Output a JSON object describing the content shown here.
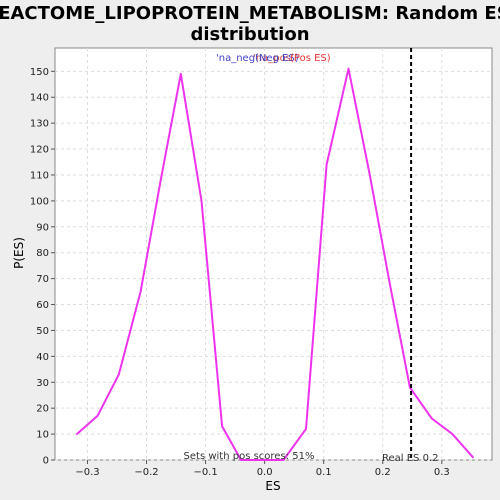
{
  "chart_data": {
    "type": "line",
    "title_line1": "REACTOME_LIPOPROTEIN_METABOLISM: Random ES",
    "title_line2": "distribution",
    "xlabel": "ES",
    "ylabel": "P(ES)",
    "xlim": [
      -0.355,
      0.385
    ],
    "ylim": [
      0,
      159
    ],
    "x_ticks": [
      -0.3,
      -0.2,
      -0.1,
      0.0,
      0.1,
      0.2,
      0.3
    ],
    "x_tick_labels": [
      "−0.3",
      "−0.2",
      "−0.1",
      "0.0",
      "0.1",
      "0.2",
      "0.3"
    ],
    "y_ticks": [
      0,
      10,
      20,
      30,
      40,
      50,
      60,
      70,
      80,
      90,
      100,
      110,
      120,
      130,
      140,
      150
    ],
    "grid": true,
    "legend": [
      {
        "label": "'na_neg'",
        "color": "#4444cc"
      },
      {
        "label": "'na_pos'",
        "color": "#cc4444"
      },
      {
        "label": "(Neg ES)",
        "color": "#4444cc"
      },
      {
        "label": "(Pos ES)",
        "color": "#ee3333"
      }
    ],
    "series": [
      {
        "color": "#ee33ee",
        "x": [
          -0.318,
          -0.283,
          -0.247,
          -0.21,
          -0.176,
          -0.142,
          -0.107,
          -0.072,
          -0.04,
          0.0,
          0.032,
          0.07,
          0.105,
          0.142,
          0.178,
          0.212,
          0.246,
          0.283,
          0.318,
          0.353
        ],
        "y": [
          10,
          17,
          33,
          65,
          108,
          149,
          100,
          13,
          0,
          0,
          0,
          12,
          114,
          151,
          110,
          68,
          28,
          16,
          10,
          1
        ]
      }
    ],
    "real_es": 0.248,
    "real_es_label": "Real ES 0.2",
    "pos_scores_label": "Sets with pos scores: 51%"
  }
}
